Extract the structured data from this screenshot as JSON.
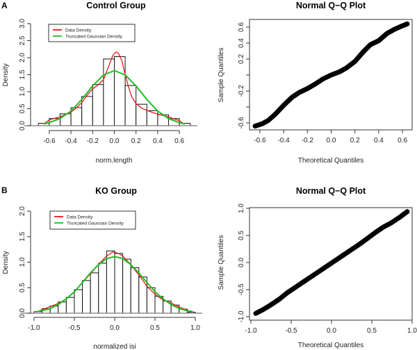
{
  "colors": {
    "data_density": "#e41a1c",
    "gaussian": "#22bb22",
    "bars": "#ffffff",
    "points": "#000000"
  },
  "chart_data": [
    {
      "id": "control_hist",
      "panel_label": "A",
      "type": "bar",
      "title": "Control Group",
      "xlabel": "norm.length",
      "ylabel": "Density",
      "xticks": [
        -0.6,
        -0.4,
        -0.2,
        0.0,
        0.2,
        0.4,
        0.6
      ],
      "xtick_labels": [
        "-0.6",
        "-0.4",
        "-0.2",
        "0.0",
        "0.2",
        "0.4",
        "0.6"
      ],
      "yticks": [
        0,
        0.5,
        1,
        1.5,
        2,
        2.5,
        3
      ],
      "ytick_labels": [
        "0.0",
        "0.5",
        "1.0",
        "1.5",
        "2.0",
        "2.5",
        "3.0"
      ],
      "ylim": [
        0,
        3
      ],
      "bin_width": 0.1,
      "bin_starts": [
        -0.7,
        -0.6,
        -0.5,
        -0.4,
        -0.3,
        -0.2,
        -0.1,
        0.0,
        0.1,
        0.2,
        0.3,
        0.4,
        0.5,
        0.6
      ],
      "values": [
        0.07,
        0.21,
        0.35,
        0.53,
        0.86,
        1.21,
        1.96,
        2.03,
        1.18,
        0.63,
        0.44,
        0.32,
        0.21,
        0.07
      ],
      "legend": [
        "Data Density",
        "Truncated Gaussian Density"
      ],
      "legend_position": "top-left",
      "series": [
        {
          "name": "Data Density",
          "x": [
            -0.65,
            -0.6,
            -0.55,
            -0.5,
            -0.45,
            -0.4,
            -0.35,
            -0.3,
            -0.25,
            -0.2,
            -0.15,
            -0.1,
            -0.07,
            -0.04,
            -0.02,
            0.0,
            0.02,
            0.04,
            0.07,
            0.1,
            0.13,
            0.16,
            0.2,
            0.25,
            0.3,
            0.35,
            0.4,
            0.45,
            0.5,
            0.55,
            0.6,
            0.64
          ],
          "y": [
            0.05,
            0.17,
            0.22,
            0.26,
            0.33,
            0.4,
            0.52,
            0.68,
            0.9,
            1.08,
            1.2,
            1.35,
            1.6,
            1.85,
            2.02,
            2.12,
            2.17,
            2.12,
            1.9,
            1.5,
            1.15,
            0.85,
            0.65,
            0.52,
            0.45,
            0.39,
            0.34,
            0.3,
            0.26,
            0.2,
            0.15,
            0.05
          ]
        },
        {
          "name": "Truncated Gaussian Density",
          "mean": 0.0,
          "sd": 0.246,
          "x": [
            -0.65,
            -0.6,
            -0.5,
            -0.4,
            -0.3,
            -0.2,
            -0.1,
            0.0,
            0.1,
            0.2,
            0.3,
            0.4,
            0.5,
            0.6,
            0.65
          ],
          "y": [
            0.05,
            0.09,
            0.21,
            0.43,
            0.77,
            1.17,
            1.49,
            1.62,
            1.49,
            1.17,
            0.77,
            0.43,
            0.21,
            0.09,
            0.05
          ]
        }
      ]
    },
    {
      "id": "control_qq",
      "type": "scatter",
      "title": "Normal Q−Q Plot",
      "xlabel": "Theoretical Quantiles",
      "ylabel": "Sample Quantiles",
      "xticks": [
        -0.6,
        -0.4,
        -0.2,
        0.0,
        0.2,
        0.4,
        0.6
      ],
      "xtick_labels": [
        "-0.6",
        "-0.4",
        "-0.2",
        "0.0",
        "0.2",
        "0.4",
        "0.6"
      ],
      "yticks": [
        -0.6,
        -0.4,
        -0.2,
        0.0,
        0.2,
        0.4,
        0.6
      ],
      "ytick_labels": [
        "-0.6",
        "",
        "-0.2",
        "",
        "0.2",
        "0.4",
        "0.6"
      ],
      "x": [
        -0.64,
        -0.58,
        -0.53,
        -0.47,
        -0.4,
        -0.33,
        -0.27,
        -0.2,
        -0.13,
        -0.07,
        0.0,
        0.07,
        0.13,
        0.2,
        0.27,
        0.33,
        0.4,
        0.47,
        0.53,
        0.59,
        0.64
      ],
      "y": [
        -0.64,
        -0.61,
        -0.57,
        -0.49,
        -0.38,
        -0.28,
        -0.22,
        -0.17,
        -0.11,
        -0.05,
        0.0,
        0.04,
        0.09,
        0.17,
        0.29,
        0.38,
        0.43,
        0.52,
        0.57,
        0.61,
        0.64
      ]
    },
    {
      "id": "ko_hist",
      "panel_label": "B",
      "type": "bar",
      "title": "KO Group",
      "xlabel": "normalized isi",
      "ylabel": "Density",
      "xticks": [
        -1.0,
        -0.5,
        0.0,
        0.5,
        1.0
      ],
      "xtick_labels": [
        "-1.0",
        "-0.5",
        "0.0",
        "0.5",
        "1.0"
      ],
      "yticks": [
        0,
        0.5,
        1,
        1.5,
        2
      ],
      "ytick_labels": [
        "0.0",
        "0.5",
        "1.0",
        "1.5",
        "2.0"
      ],
      "ylim": [
        0,
        2
      ],
      "bin_width": 0.1,
      "bin_starts": [
        -1.0,
        -0.9,
        -0.8,
        -0.7,
        -0.6,
        -0.5,
        -0.4,
        -0.3,
        -0.2,
        -0.1,
        0.0,
        0.1,
        0.2,
        0.3,
        0.4,
        0.5,
        0.6,
        0.7,
        0.8,
        0.9
      ],
      "values": [
        0.03,
        0.09,
        0.14,
        0.22,
        0.31,
        0.46,
        0.64,
        0.79,
        0.98,
        1.22,
        1.17,
        1.06,
        0.89,
        0.71,
        0.5,
        0.33,
        0.24,
        0.16,
        0.08,
        0.02
      ],
      "legend": [
        "Data Density",
        "Truncated Gaussian Density"
      ],
      "legend_position": "top-left",
      "series": [
        {
          "name": "Data Density",
          "x": [
            -0.97,
            -0.9,
            -0.8,
            -0.7,
            -0.6,
            -0.5,
            -0.4,
            -0.3,
            -0.2,
            -0.1,
            -0.02,
            0.05,
            0.1,
            0.2,
            0.3,
            0.4,
            0.5,
            0.6,
            0.7,
            0.8,
            0.9,
            0.97
          ],
          "y": [
            0.02,
            0.07,
            0.13,
            0.19,
            0.28,
            0.42,
            0.6,
            0.77,
            0.96,
            1.12,
            1.2,
            1.17,
            1.12,
            0.95,
            0.75,
            0.53,
            0.37,
            0.26,
            0.2,
            0.12,
            0.06,
            0.02
          ]
        },
        {
          "name": "Truncated Gaussian Density",
          "mean": 0.0,
          "sd": 0.36,
          "x": [
            -0.97,
            -0.9,
            -0.8,
            -0.7,
            -0.6,
            -0.5,
            -0.4,
            -0.3,
            -0.2,
            -0.1,
            0.0,
            0.1,
            0.2,
            0.3,
            0.4,
            0.5,
            0.6,
            0.7,
            0.8,
            0.9,
            0.97
          ],
          "y": [
            0.03,
            0.05,
            0.09,
            0.17,
            0.28,
            0.42,
            0.6,
            0.79,
            0.95,
            1.07,
            1.11,
            1.07,
            0.95,
            0.79,
            0.6,
            0.42,
            0.28,
            0.17,
            0.09,
            0.05,
            0.03
          ]
        }
      ]
    },
    {
      "id": "ko_qq",
      "type": "scatter",
      "title": "Normal Q−Q Plot",
      "xlabel": "Theoretical Quantiles",
      "ylabel": "Sample Quantiles",
      "xticks": [
        -1.0,
        -0.5,
        0.0,
        0.5,
        1.0
      ],
      "xtick_labels": [
        "-1.0",
        "-0.5",
        "0.0",
        "0.5",
        "1.0"
      ],
      "yticks": [
        -1.0,
        -0.5,
        0.0,
        0.5,
        1.0
      ],
      "ytick_labels": [
        "-1.0",
        "-0.5",
        "0.0",
        "0.5",
        "1.0"
      ],
      "x": [
        -0.94,
        -0.85,
        -0.75,
        -0.65,
        -0.55,
        -0.45,
        -0.35,
        -0.25,
        -0.15,
        -0.05,
        0.05,
        0.15,
        0.25,
        0.35,
        0.45,
        0.55,
        0.65,
        0.75,
        0.85,
        0.94
      ],
      "y": [
        -0.94,
        -0.87,
        -0.78,
        -0.68,
        -0.56,
        -0.46,
        -0.36,
        -0.26,
        -0.16,
        -0.06,
        0.04,
        0.14,
        0.24,
        0.34,
        0.45,
        0.56,
        0.66,
        0.74,
        0.84,
        0.94
      ]
    }
  ]
}
